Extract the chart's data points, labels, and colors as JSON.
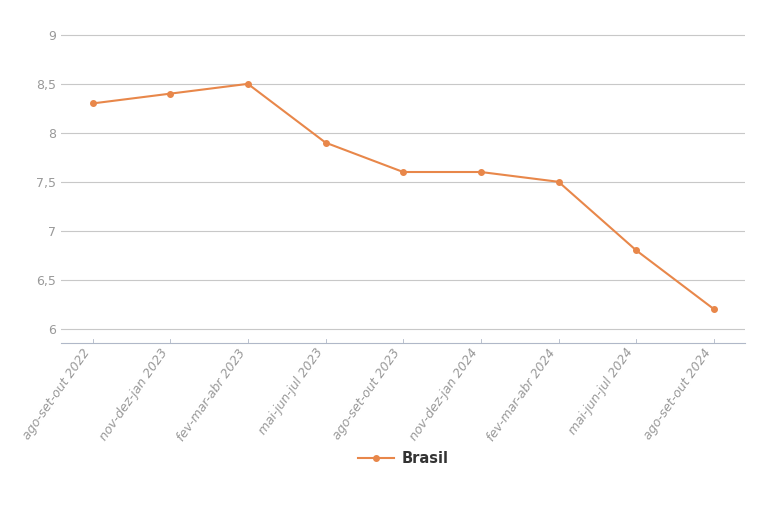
{
  "categories": [
    "ago-set-out 2022",
    "nov-dez-jan 2023",
    "fev-mar-abr 2023",
    "mai-jun-jul 2023",
    "ago-set-out 2023",
    "nov-dez-jan 2024",
    "fev-mar-abr 2024",
    "mai-jun-jul 2024",
    "ago-set-out 2024"
  ],
  "values": [
    8.3,
    8.4,
    8.5,
    7.9,
    7.6,
    7.6,
    7.5,
    6.8,
    6.2
  ],
  "line_color": "#E8874A",
  "marker_color": "#E8874A",
  "marker_style": "o",
  "marker_size": 4,
  "line_width": 1.5,
  "ylim": [
    5.85,
    9.15
  ],
  "yticks": [
    6.0,
    6.5,
    7.0,
    7.5,
    8.0,
    8.5,
    9.0
  ],
  "ytick_labels": [
    "6",
    "6,5",
    "7",
    "7,5",
    "8",
    "8,5",
    "9"
  ],
  "legend_label": "Brasil",
  "background_color": "#ffffff",
  "grid_color": "#c8c8c8",
  "tick_label_color": "#999999",
  "tick_fontsize": 9,
  "legend_fontsize": 10.5,
  "legend_text_color": "#333333"
}
